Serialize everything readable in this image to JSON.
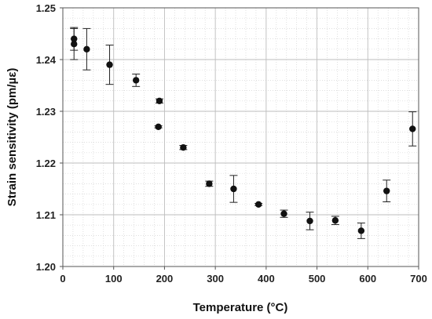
{
  "chart_data": {
    "type": "scatter",
    "xlabel": "Temperature (°C)",
    "ylabel": "Strain sensitivity (pm/µε)",
    "xlim": [
      0,
      700
    ],
    "ylim": [
      1.2,
      1.25
    ],
    "x_ticks": [
      0,
      100,
      200,
      300,
      400,
      500,
      600,
      700
    ],
    "x_tick_labels": [
      "0",
      "100",
      "200",
      "300",
      "400",
      "500",
      "600",
      "700"
    ],
    "y_ticks": [
      1.2,
      1.21,
      1.22,
      1.23,
      1.24,
      1.25
    ],
    "y_tick_labels": [
      "1.20",
      "1.21",
      "1.22",
      "1.23",
      "1.24",
      "1.25"
    ],
    "grid": true,
    "minor_grid": true,
    "legend": false,
    "series": [
      {
        "marker_color": "#111111",
        "points": [
          {
            "x": 22,
            "y": 1.244,
            "err": 0.0022
          },
          {
            "x": 22,
            "y": 1.243,
            "err": 0.003
          },
          {
            "x": 47,
            "y": 1.242,
            "err": 0.004
          },
          {
            "x": 92,
            "y": 1.239,
            "err": 0.0038
          },
          {
            "x": 144,
            "y": 1.236,
            "err": 0.0012
          },
          {
            "x": 190,
            "y": 1.232,
            "err": 0.0004
          },
          {
            "x": 188,
            "y": 1.227,
            "err": 0.0002
          },
          {
            "x": 237,
            "y": 1.223,
            "err": 0.0004
          },
          {
            "x": 288,
            "y": 1.216,
            "err": 0.0005
          },
          {
            "x": 336,
            "y": 1.215,
            "err": 0.0026
          },
          {
            "x": 385,
            "y": 1.212,
            "err": 0.0002
          },
          {
            "x": 435,
            "y": 1.2102,
            "err": 0.0007
          },
          {
            "x": 486,
            "y": 1.2088,
            "err": 0.0017
          },
          {
            "x": 536,
            "y": 1.2089,
            "err": 0.0008
          },
          {
            "x": 587,
            "y": 1.2069,
            "err": 0.0015
          },
          {
            "x": 637,
            "y": 1.2146,
            "err": 0.0021
          },
          {
            "x": 688,
            "y": 1.2266,
            "err": 0.0033
          }
        ]
      }
    ]
  }
}
